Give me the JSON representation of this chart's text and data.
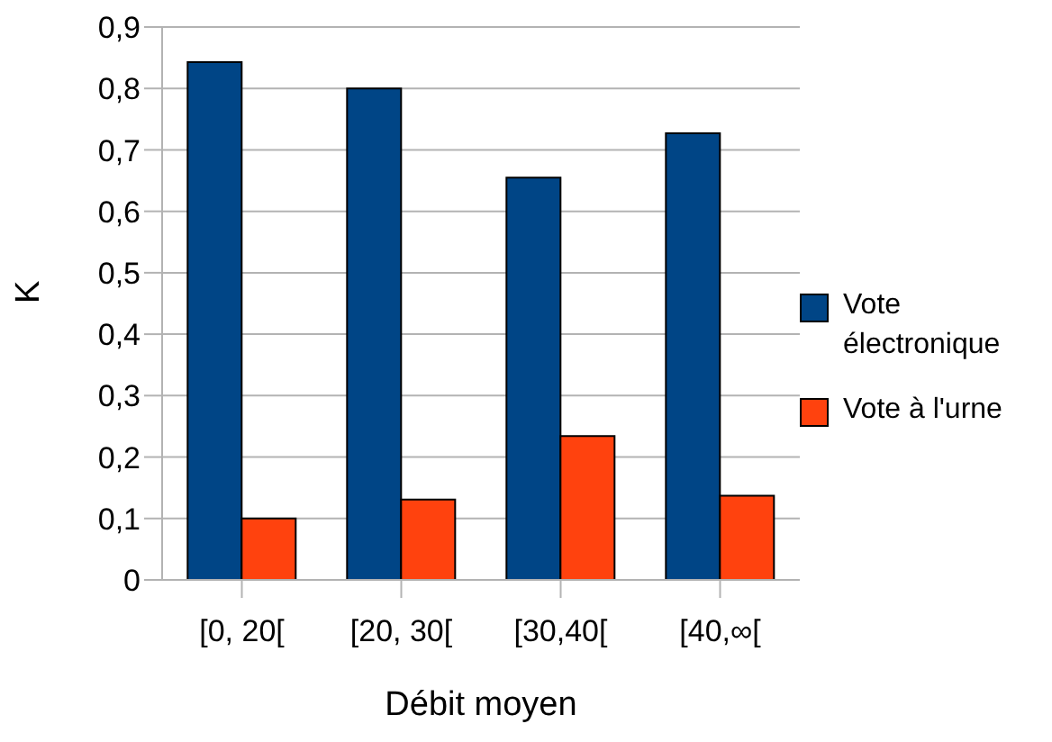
{
  "chart_data": {
    "type": "bar",
    "xlabel": "Débit moyen",
    "ylabel": "K",
    "categories": [
      "[0, 20[",
      "[20, 30[",
      "[30,40[",
      "[40,∞["
    ],
    "series": [
      {
        "name": "Vote électronique",
        "color": "#004586",
        "values": [
          0.843,
          0.8,
          0.655,
          0.727
        ]
      },
      {
        "name": "Vote à l'urne",
        "color": "#ff420e",
        "values": [
          0.1,
          0.131,
          0.234,
          0.137
        ]
      }
    ],
    "ylim": [
      0,
      0.9
    ],
    "yticks": [
      0,
      {
        "value": 0.1,
        "label": "0,1"
      },
      {
        "value": 0.2,
        "label": "0,2"
      },
      {
        "value": 0.3,
        "label": "0,3"
      },
      {
        "value": 0.4,
        "label": "0,4"
      },
      {
        "value": 0.5,
        "label": "0,5"
      },
      {
        "value": 0.6,
        "label": "0,6"
      },
      {
        "value": 0.7,
        "label": "0,7"
      },
      {
        "value": 0.8,
        "label": "0,8"
      },
      {
        "value": 0.9,
        "label": "0,9"
      }
    ],
    "grid": "y",
    "legend": "right"
  }
}
